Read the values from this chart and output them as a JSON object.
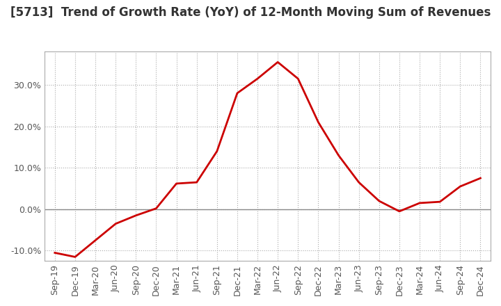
{
  "title": "[5713]  Trend of Growth Rate (YoY) of 12-Month Moving Sum of Revenues",
  "title_fontsize": 12,
  "line_color": "#cc0000",
  "background_color": "#ffffff",
  "grid_color": "#aaaaaa",
  "zero_line_color": "#888888",
  "x_labels": [
    "Sep-19",
    "Dec-19",
    "Mar-20",
    "Jun-20",
    "Sep-20",
    "Dec-20",
    "Mar-21",
    "Jun-21",
    "Sep-21",
    "Dec-21",
    "Mar-22",
    "Jun-22",
    "Sep-22",
    "Dec-22",
    "Mar-23",
    "Jun-23",
    "Sep-23",
    "Dec-23",
    "Mar-24",
    "Jun-24",
    "Sep-24",
    "Dec-24"
  ],
  "y_values": [
    -10.5,
    -11.5,
    -7.5,
    -3.5,
    -1.5,
    0.2,
    6.2,
    6.5,
    14.0,
    28.0,
    31.5,
    35.5,
    31.5,
    21.0,
    13.0,
    6.5,
    2.0,
    -0.5,
    1.5,
    1.8,
    5.5,
    7.5
  ],
  "ylim": [
    -12.5,
    38
  ],
  "yticks": [
    -10.0,
    0.0,
    10.0,
    20.0,
    30.0
  ],
  "linewidth": 2.0,
  "tick_fontsize": 9,
  "label_color": "#555555"
}
